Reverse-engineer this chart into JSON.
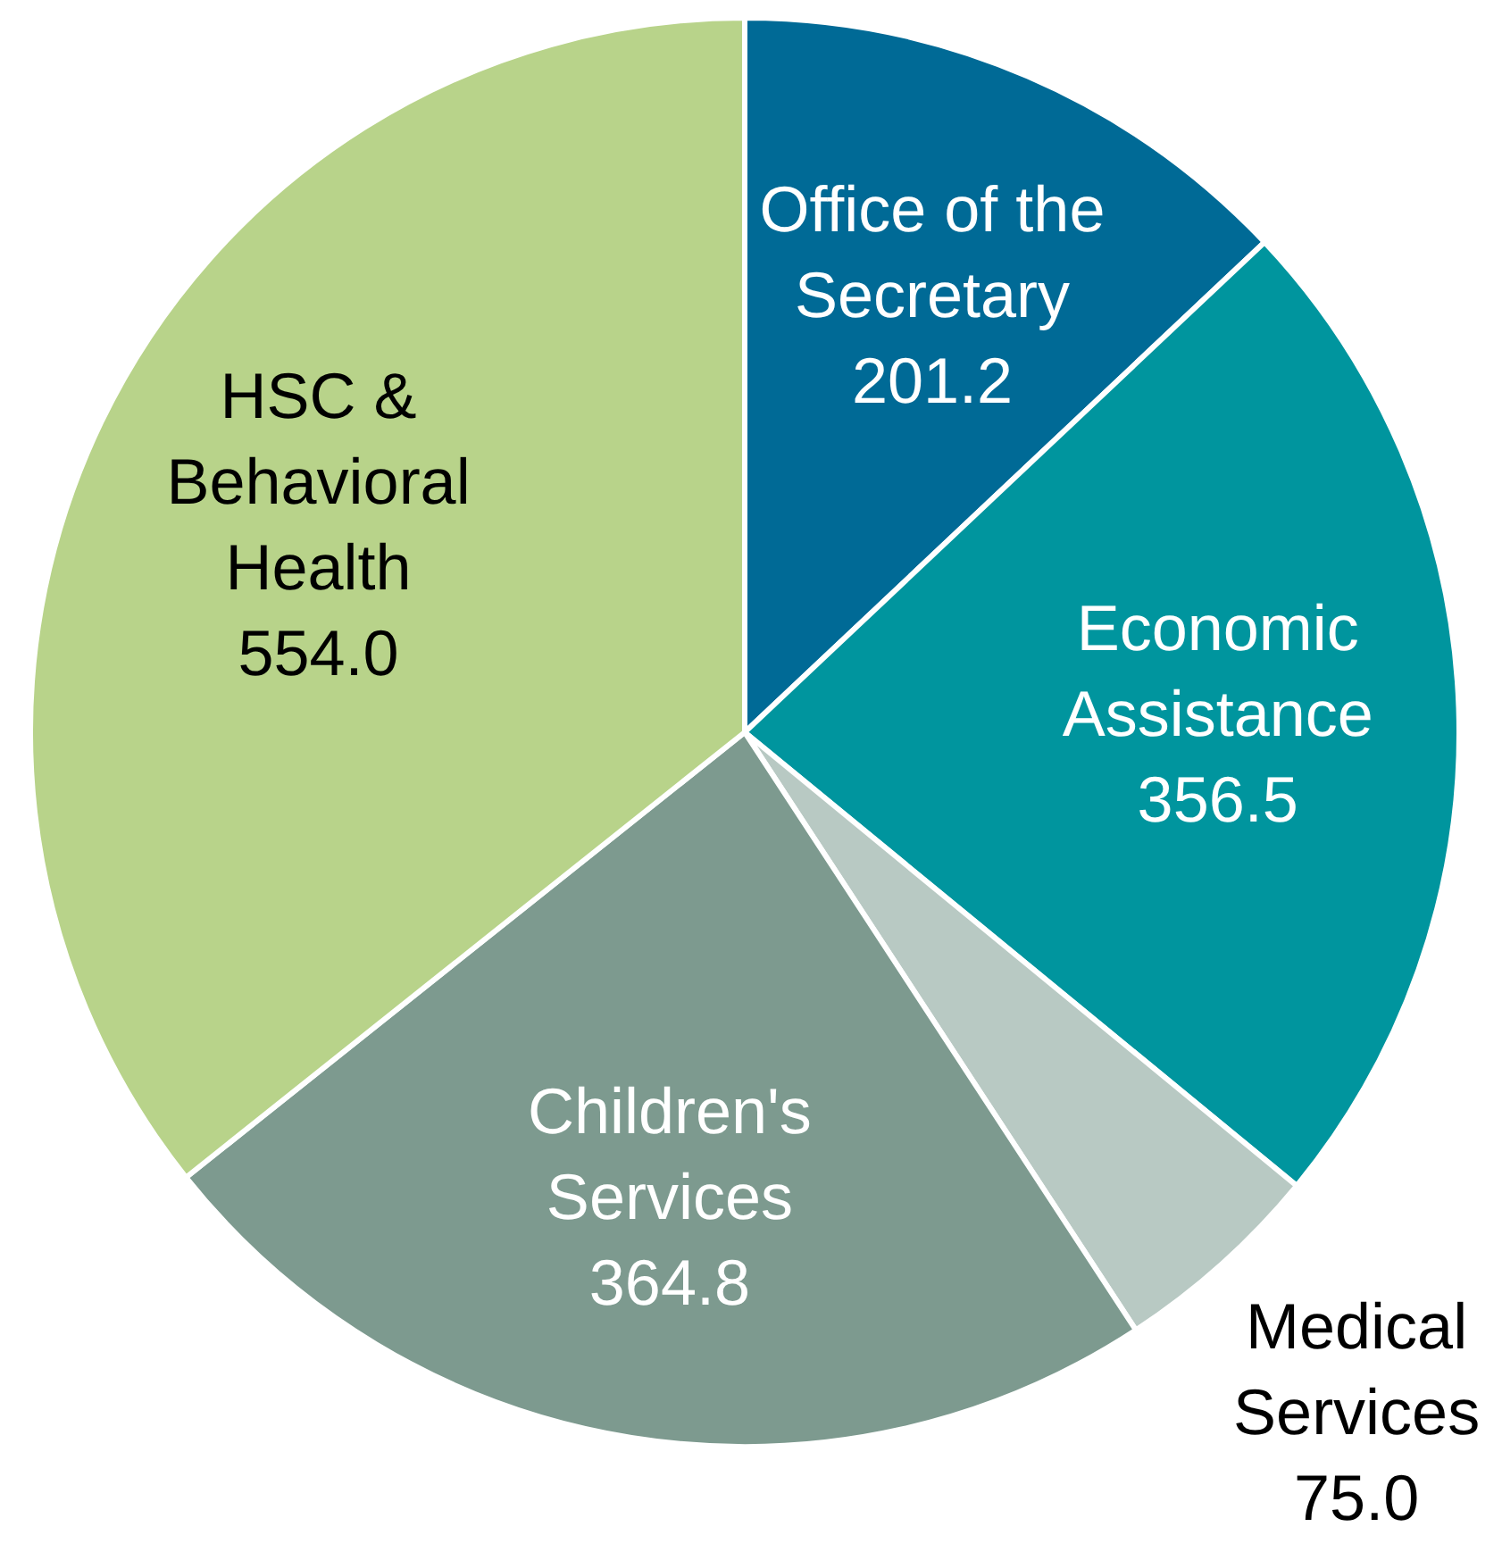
{
  "chart_data": {
    "type": "pie",
    "categories": [
      "Office of the\nSecretary",
      "Economic\nAssistance",
      "Medical\nServices",
      "Children's\nServices",
      "HSC &\nBehavioral\nHealth"
    ],
    "values": [
      201.2,
      356.5,
      75.0,
      364.8,
      554.0
    ],
    "colors": [
      "#006a96",
      "#00959e",
      "#b8c9c3",
      "#7d9a8f",
      "#b8d38a"
    ],
    "value_labels": [
      "201.2",
      "356.5",
      "75.0",
      "364.8",
      "554.0"
    ]
  }
}
